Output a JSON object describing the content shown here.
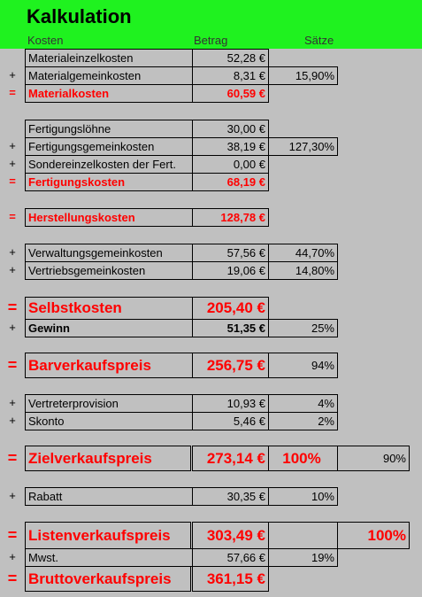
{
  "title": "Kalkulation",
  "columns": {
    "kosten": "Kosten",
    "betrag": "Betrag",
    "saetze": "Sätze"
  },
  "rows": [
    {
      "op": "",
      "label": "Materialeinzelkosten",
      "betrag": "52,28 €",
      "satz": "",
      "extra": ""
    },
    {
      "op": "+",
      "label": "Materialgemeinkosten",
      "betrag": "8,31 €",
      "satz": "15,90%",
      "extra": ""
    },
    {
      "op": "=",
      "label": "Materialkosten",
      "betrag": "60,59 €",
      "satz": "",
      "extra": ""
    },
    {
      "op": "",
      "label": "Fertigungslöhne",
      "betrag": "30,00 €",
      "satz": "",
      "extra": ""
    },
    {
      "op": "+",
      "label": "Fertigungsgemeinkosten",
      "betrag": "38,19 €",
      "satz": "127,30%",
      "extra": ""
    },
    {
      "op": "+",
      "label": "Sondereinzelkosten der Fert.",
      "betrag": "0,00 €",
      "satz": "",
      "extra": ""
    },
    {
      "op": "=",
      "label": "Fertigungskosten",
      "betrag": "68,19 €",
      "satz": "",
      "extra": ""
    },
    {
      "op": "=",
      "label": "Herstellungskosten",
      "betrag": "128,78 €",
      "satz": "",
      "extra": ""
    },
    {
      "op": "+",
      "label": "Verwaltungsgemeinkosten",
      "betrag": "57,56 €",
      "satz": "44,70%",
      "extra": ""
    },
    {
      "op": "+",
      "label": "Vertriebsgemeinkosten",
      "betrag": "19,06 €",
      "satz": "14,80%",
      "extra": ""
    },
    {
      "op": "=",
      "label": "Selbstkosten",
      "betrag": "205,40 €",
      "satz": "",
      "extra": ""
    },
    {
      "op": "+",
      "label": "Gewinn",
      "betrag": "51,35 €",
      "satz": "25%",
      "extra": ""
    },
    {
      "op": "=",
      "label": "Barverkaufspreis",
      "betrag": "256,75 €",
      "satz": "94%",
      "extra": ""
    },
    {
      "op": "+",
      "label": "Vertreterprovision",
      "betrag": "10,93 €",
      "satz": "4%",
      "extra": ""
    },
    {
      "op": "+",
      "label": "Skonto",
      "betrag": "5,46 €",
      "satz": "2%",
      "extra": ""
    },
    {
      "op": "=",
      "label": "Zielverkaufspreis",
      "betrag": "273,14 €",
      "satz": "100%",
      "extra": "90%"
    },
    {
      "op": "+",
      "label": "Rabatt",
      "betrag": "30,35 €",
      "satz": "10%",
      "extra": ""
    },
    {
      "op": "=",
      "label": "Listenverkaufspreis",
      "betrag": "303,49 €",
      "satz": "",
      "extra": "100%"
    },
    {
      "op": "+",
      "label": "Mwst.",
      "betrag": "57,66 €",
      "satz": "19%",
      "extra": ""
    },
    {
      "op": "=",
      "label": "Bruttoverkaufspreis",
      "betrag": "361,15 €",
      "satz": "",
      "extra": ""
    }
  ],
  "colors": {
    "header_band": "#1ff21f",
    "background": "#c0c0c0",
    "result_red": "#ff0000"
  }
}
